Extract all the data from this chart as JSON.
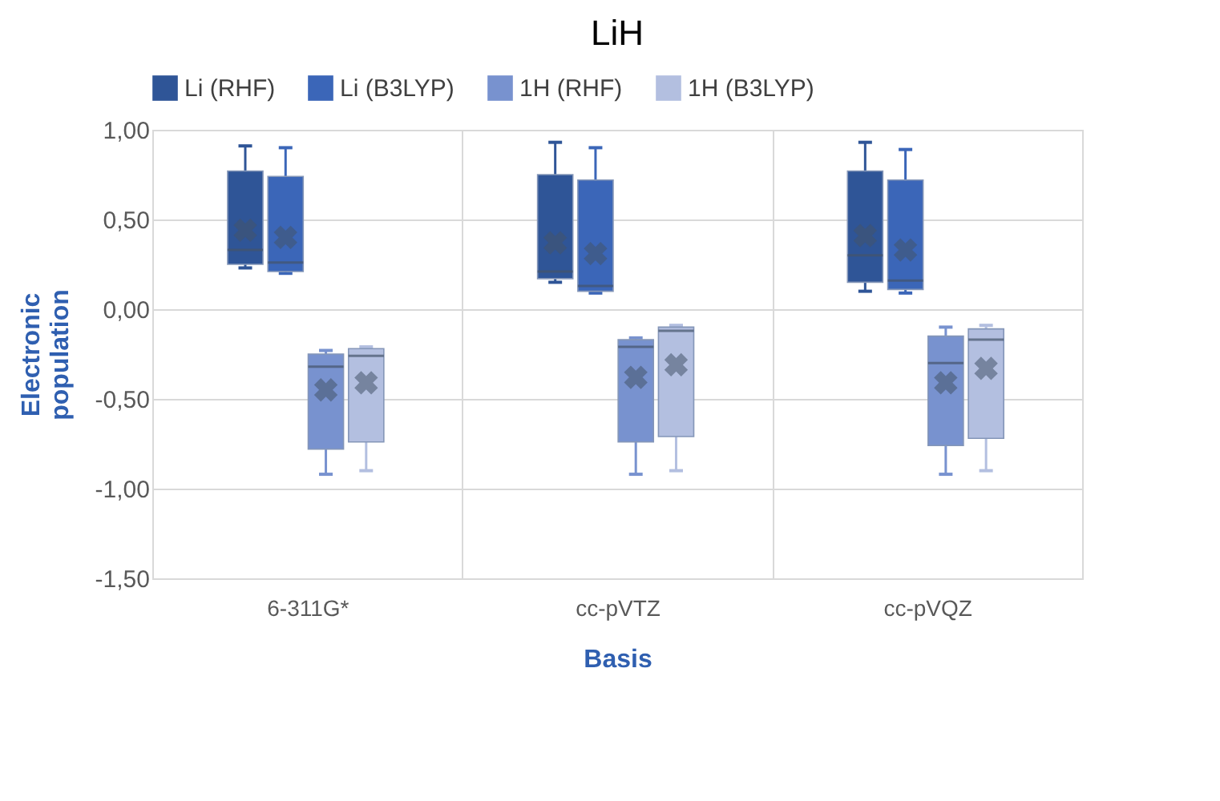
{
  "chart_data": {
    "type": "box",
    "title": "LiH",
    "xlabel": "Basis",
    "ylabel": "Electronic population",
    "categories": [
      "6-311G*",
      "cc-pVTZ",
      "cc-pVQZ"
    ],
    "ylim": [
      -1.5,
      1
    ],
    "yticks": [
      {
        "value": -1.5,
        "label": "-1,50"
      },
      {
        "value": -1,
        "label": "-1,00"
      },
      {
        "value": -0.5,
        "label": "-0,50"
      },
      {
        "value": 0,
        "label": "0,00"
      },
      {
        "value": 0.5,
        "label": "0,50"
      },
      {
        "value": 1,
        "label": "1,00"
      }
    ],
    "grid": true,
    "legend": "top",
    "series": [
      {
        "name": "Li (RHF)",
        "color": "#2f5597",
        "boxes": [
          {
            "low": 0.23,
            "q1": 0.25,
            "median": 0.33,
            "q3": 0.77,
            "high": 0.91,
            "mean": 0.44
          },
          {
            "low": 0.15,
            "q1": 0.17,
            "median": 0.21,
            "q3": 0.75,
            "high": 0.93,
            "mean": 0.37
          },
          {
            "low": 0.1,
            "q1": 0.15,
            "median": 0.3,
            "q3": 0.77,
            "high": 0.93,
            "mean": 0.41
          }
        ]
      },
      {
        "name": "Li (B3LYP)",
        "color": "#3b66b8",
        "boxes": [
          {
            "low": 0.2,
            "q1": 0.21,
            "median": 0.26,
            "q3": 0.74,
            "high": 0.9,
            "mean": 0.4
          },
          {
            "low": 0.09,
            "q1": 0.1,
            "median": 0.13,
            "q3": 0.72,
            "high": 0.9,
            "mean": 0.31
          },
          {
            "low": 0.09,
            "q1": 0.11,
            "median": 0.16,
            "q3": 0.72,
            "high": 0.89,
            "mean": 0.33
          }
        ]
      },
      {
        "name": "1H (RHF)",
        "color": "#7892cf",
        "boxes": [
          {
            "low": -0.92,
            "q1": -0.78,
            "median": -0.32,
            "q3": -0.25,
            "high": -0.23,
            "mean": -0.45
          },
          {
            "low": -0.92,
            "q1": -0.74,
            "median": -0.21,
            "q3": -0.17,
            "high": -0.16,
            "mean": -0.38
          },
          {
            "low": -0.92,
            "q1": -0.76,
            "median": -0.3,
            "q3": -0.15,
            "high": -0.1,
            "mean": -0.41
          }
        ]
      },
      {
        "name": "1H (B3LYP)",
        "color": "#b3bfe0",
        "boxes": [
          {
            "low": -0.9,
            "q1": -0.74,
            "median": -0.26,
            "q3": -0.22,
            "high": -0.21,
            "mean": -0.41
          },
          {
            "low": -0.9,
            "q1": -0.71,
            "median": -0.12,
            "q3": -0.1,
            "high": -0.09,
            "mean": -0.31
          },
          {
            "low": -0.9,
            "q1": -0.72,
            "median": -0.17,
            "q3": -0.11,
            "high": -0.09,
            "mean": -0.33
          }
        ]
      }
    ]
  }
}
